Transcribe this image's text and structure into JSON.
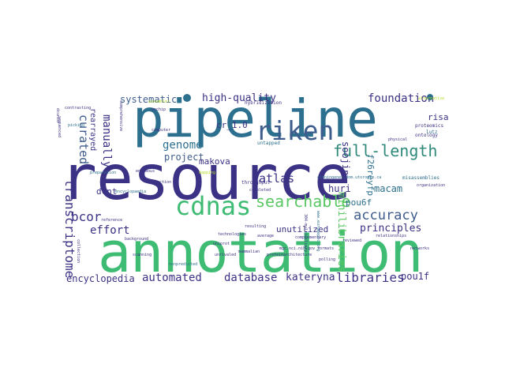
{
  "colors": {
    "navy": "#3b3285",
    "teal": "#2d6f8e",
    "blue": "#3e5c8c",
    "cyan": "#21918c",
    "green": "#3fbc73",
    "lime": "#b5de2b",
    "purple": "#472d7b",
    "dark": "#440154"
  },
  "wordcloud": {
    "large": {
      "resource": "resource",
      "annotation": "annotation",
      "pipeline": "pipeline",
      "riken": "riken",
      "cdnas": "cdnas",
      "full_length": "full-length",
      "searchable": "searchable",
      "atlas": "atlas",
      "accuracy": "accuracy",
      "transcriptome": "transcriptome",
      "curated": "curated",
      "manually": "manually",
      "genome": "genome",
      "project": "project",
      "bcor": "bcor",
      "effort": "effort",
      "foundation": "foundation",
      "high_quality": "high-quality",
      "systematic": "systematic",
      "libraries": "libraries",
      "automated": "automated",
      "database": "database",
      "kateryna": "kateryna",
      "encyclopedia": "encyclopedia",
      "principles": "principles",
      "minilibraries": "minilibraries",
      "soojin": "soojin",
      "makova": "makova",
      "macam": "macam",
      "huri": "huri",
      "pou6f": "pou6f",
      "pou1f": "pou1f",
      "risa": "risa",
      "f26reyfp": "f26reyfp",
      "rearrayed": "rearrayed",
      "unutilized": "unutilized",
      "cr_1_0": "cr_1.0",
      "dcnt": "dcnt"
    },
    "small": [
      "proteomics",
      "ontology",
      "lutz",
      "untapped",
      "throughput",
      "misassemblies",
      "organization",
      "mammalian",
      "collection",
      "comprehensive",
      "hybridization",
      "sequenced",
      "dcunid",
      "encyclopaedia",
      "mgc.nci.nih.gov",
      "304-multiciliary",
      "cloningenes.dom.utoronto.ca",
      "www.europepmc.org",
      "networks",
      "unrivaled",
      "background",
      "nonpredicted",
      "technologies",
      "proteinarchitecture",
      "polling",
      "mapping",
      "detection",
      "enormous",
      "preparation",
      "alternative",
      "complementary",
      "relationships",
      "assembler",
      "uniprot",
      "resulting",
      "average",
      "reference",
      "enchip",
      "contrasting",
      "picking",
      "physical",
      "scanning",
      "reviewed",
      "completed",
      "computer",
      "formats"
    ]
  }
}
